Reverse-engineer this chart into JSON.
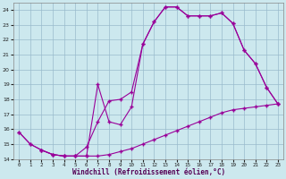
{
  "xlabel": "Windchill (Refroidissement éolien,°C)",
  "background_color": "#cce8ee",
  "line_color": "#990099",
  "grid_color": "#99bbcc",
  "xlim": [
    -0.5,
    23.5
  ],
  "ylim": [
    14.0,
    24.5
  ],
  "yticks": [
    14,
    15,
    16,
    17,
    18,
    19,
    20,
    21,
    22,
    23,
    24
  ],
  "xticks": [
    0,
    1,
    2,
    3,
    4,
    5,
    6,
    7,
    8,
    9,
    10,
    11,
    12,
    13,
    14,
    15,
    16,
    17,
    18,
    19,
    20,
    21,
    22,
    23
  ],
  "line1_x": [
    0,
    1,
    2,
    3,
    4,
    5,
    6,
    7,
    8,
    9,
    10,
    11,
    12,
    13,
    14,
    15,
    16,
    17,
    18,
    19,
    20,
    21,
    22,
    23
  ],
  "line1_y": [
    15.8,
    15.0,
    14.6,
    14.3,
    14.2,
    14.2,
    14.2,
    14.2,
    14.3,
    14.5,
    14.7,
    15.0,
    15.3,
    15.6,
    15.9,
    16.2,
    16.5,
    16.8,
    17.1,
    17.3,
    17.4,
    17.5,
    17.6,
    17.7
  ],
  "line2_x": [
    0,
    1,
    2,
    3,
    4,
    5,
    6,
    7,
    8,
    9,
    10,
    11,
    12,
    13,
    14,
    15,
    16,
    17,
    18,
    19,
    20,
    21,
    22,
    23
  ],
  "line2_y": [
    15.8,
    15.0,
    14.6,
    14.3,
    14.2,
    14.2,
    14.2,
    19.0,
    16.5,
    16.3,
    17.5,
    21.7,
    23.2,
    24.2,
    24.2,
    23.6,
    23.6,
    23.6,
    23.8,
    23.1,
    21.3,
    20.4,
    18.8,
    17.7
  ],
  "line3_x": [
    2,
    3,
    4,
    5,
    6,
    7,
    8,
    9,
    10,
    11,
    12,
    13,
    14,
    15,
    16,
    17,
    18,
    19,
    20,
    21,
    22,
    23
  ],
  "line3_y": [
    14.6,
    14.3,
    14.2,
    14.2,
    14.8,
    16.5,
    17.9,
    18.0,
    18.5,
    21.7,
    23.2,
    24.2,
    24.2,
    23.6,
    23.6,
    23.6,
    23.8,
    23.1,
    21.3,
    20.4,
    18.8,
    17.7
  ]
}
